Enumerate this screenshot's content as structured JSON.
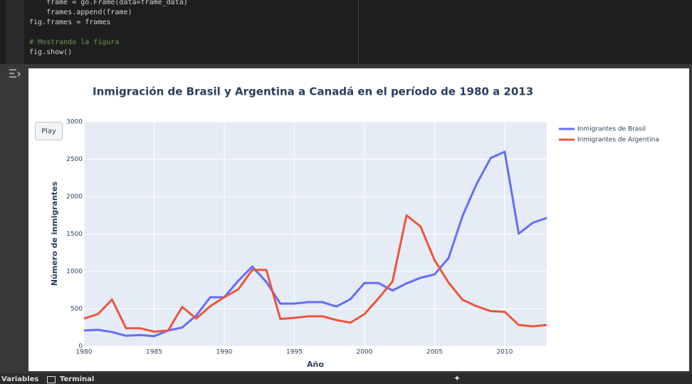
{
  "code": {
    "lines": [
      "    frame = go.Frame(data=frame_data)",
      "    frames.append(frame)",
      "fig.frames = frames",
      "# Mostrando la figura",
      "fig.show()"
    ]
  },
  "bottom_bar": {
    "items": [
      "Variables",
      "Terminal"
    ]
  },
  "chart_data": {
    "type": "line",
    "title": "Inmigración de Brasil y Argentina a Canadá en el período de 1980 a 2013",
    "x_label": "Año",
    "y_label": "Número de inmigrantes",
    "play_button": "Play",
    "x": [
      1980,
      1981,
      1982,
      1983,
      1984,
      1985,
      1986,
      1987,
      1988,
      1989,
      1990,
      1991,
      1992,
      1993,
      1994,
      1995,
      1996,
      1997,
      1998,
      1999,
      2000,
      2001,
      2002,
      2003,
      2004,
      2005,
      2006,
      2007,
      2008,
      2009,
      2010,
      2011,
      2012,
      2013
    ],
    "series": [
      {
        "name": "Inmigrantes de Brasil",
        "color": "#636efa",
        "values": [
          211,
          220,
          190,
          140,
          150,
          135,
          210,
          250,
          410,
          655,
          655,
          875,
          1065,
          860,
          570,
          570,
          590,
          590,
          530,
          630,
          845,
          845,
          745,
          840,
          915,
          960,
          1180,
          1745,
          2170,
          2515,
          2600,
          1505,
          1650,
          1715
        ]
      },
      {
        "name": "Inmigrantes de Argentina",
        "color": "#ef553b",
        "values": [
          370,
          430,
          625,
          240,
          240,
          195,
          210,
          525,
          370,
          535,
          655,
          760,
          1020,
          1020,
          365,
          380,
          400,
          400,
          350,
          315,
          430,
          640,
          865,
          1750,
          1600,
          1150,
          850,
          620,
          535,
          470,
          460,
          285,
          265,
          285
        ]
      }
    ],
    "xlim": [
      1980,
      2013
    ],
    "xticks": [
      1980,
      1985,
      1990,
      1995,
      2000,
      2005,
      2010
    ],
    "ylim": [
      0,
      3000
    ],
    "yticks": [
      0,
      500,
      1000,
      1500,
      2000,
      2500,
      3000
    ],
    "grid": true,
    "legend": "top-right"
  }
}
